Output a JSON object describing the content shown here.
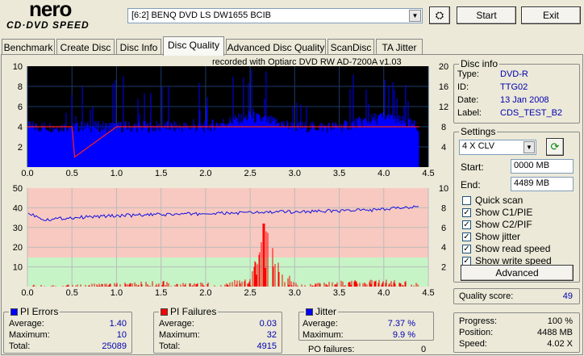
{
  "app": {
    "logo_line1": "nero",
    "logo_line2": "CD·DVD SPEED"
  },
  "toolbar": {
    "drive": "[6:2]  BENQ DVD LS DW1655 BCIB",
    "start_label": "Start",
    "exit_label": "Exit"
  },
  "tabs": [
    "Benchmark",
    "Create Disc",
    "Disc Info",
    "Disc Quality",
    "Advanced Disc Quality",
    "ScanDisc",
    "TA Jitter"
  ],
  "active_tab": "Disc Quality",
  "chart_top": {
    "caption": "recorded with Optiarc  DVD RW AD-7200A   v1.03",
    "yticks_left": [
      "10",
      "8",
      "6",
      "4",
      "2"
    ],
    "yticks_right": [
      "20",
      "16",
      "12",
      "8",
      "4"
    ],
    "xticks": [
      "0.0",
      "0.5",
      "1.0",
      "1.5",
      "2.0",
      "2.5",
      "3.0",
      "3.5",
      "4.0",
      "4.5"
    ]
  },
  "chart_bottom": {
    "yticks_left": [
      "50",
      "40",
      "30",
      "20",
      "10"
    ],
    "yticks_right": [
      "10",
      "8",
      "6",
      "4",
      "2"
    ],
    "xticks": [
      "0.0",
      "0.5",
      "1.0",
      "1.5",
      "2.0",
      "2.5",
      "3.0",
      "3.5",
      "4.0",
      "4.5"
    ]
  },
  "chart_data": [
    {
      "type": "bar",
      "title": "",
      "series": [
        {
          "name": "PI Errors",
          "color": "#0000ff",
          "x": [
            0.0,
            0.5,
            1.0,
            1.5,
            2.0,
            2.5,
            3.0,
            3.5,
            4.0,
            4.4
          ],
          "values": [
            4,
            4,
            4,
            4,
            4,
            5,
            4,
            4,
            5,
            4
          ]
        },
        {
          "name": "Read speed",
          "color": "#ff0000",
          "x": [
            0.0,
            0.5,
            0.53,
            1.0,
            2.0,
            3.0,
            4.0,
            4.4
          ],
          "values": [
            4,
            4,
            1,
            4,
            4,
            4,
            4,
            4
          ]
        }
      ],
      "xlim": [
        0,
        4.5
      ],
      "ylim": [
        0,
        10
      ],
      "y2lim": [
        0,
        20
      ]
    },
    {
      "type": "line",
      "title": "",
      "series": [
        {
          "name": "PI Failures",
          "color": "#ff0000",
          "x": [
            0.0,
            0.5,
            1.0,
            1.5,
            2.0,
            2.5,
            2.65,
            3.0,
            3.5,
            4.0,
            4.4
          ],
          "values": [
            2,
            1,
            2,
            3,
            2,
            4,
            32,
            2,
            3,
            4,
            2
          ]
        },
        {
          "name": "Jitter",
          "color": "#0000ff",
          "x": [
            0.0,
            0.2,
            0.5,
            1.0,
            1.5,
            2.0,
            2.5,
            3.0,
            3.5,
            4.0,
            4.4
          ],
          "values": [
            7.5,
            6.8,
            7.0,
            7.2,
            7.3,
            7.4,
            7.5,
            7.6,
            7.7,
            7.8,
            8.2
          ]
        }
      ],
      "xlim": [
        0,
        4.5
      ],
      "ylim": [
        0,
        50
      ],
      "y2lim": [
        0,
        10
      ]
    }
  ],
  "disc_info": {
    "title": "Disc info",
    "rows": [
      {
        "label": "Type:",
        "value": "DVD-R"
      },
      {
        "label": "ID:",
        "value": "TTG02"
      },
      {
        "label": "Date:",
        "value": "13 Jan 2008"
      },
      {
        "label": "Label:",
        "value": "CDS_TEST_B2"
      }
    ]
  },
  "settings": {
    "title": "Settings",
    "speed": "4 X CLV",
    "start_label": "Start:",
    "start_value": "0000 MB",
    "end_label": "End:",
    "end_value": "4489 MB",
    "checks": [
      {
        "label": "Quick scan",
        "checked": false
      },
      {
        "label": "Show C1/PIE",
        "checked": true
      },
      {
        "label": "Show C2/PIF",
        "checked": true
      },
      {
        "label": "Show jitter",
        "checked": true
      },
      {
        "label": "Show read speed",
        "checked": true
      },
      {
        "label": "Show write speed",
        "checked": true
      }
    ],
    "advanced_label": "Advanced"
  },
  "quality": {
    "label": "Quality score:",
    "value": "49"
  },
  "pi_errors": {
    "title": "PI Errors",
    "color": "#0000ff",
    "average_label": "Average:",
    "average": "1.40",
    "maximum_label": "Maximum:",
    "maximum": "10",
    "total_label": "Total:",
    "total": "25089"
  },
  "pi_failures": {
    "title": "PI Failures",
    "color": "#ff0000",
    "average_label": "Average:",
    "average": "0.03",
    "maximum_label": "Maximum:",
    "maximum": "32",
    "total_label": "Total:",
    "total": "4915"
  },
  "jitter": {
    "title": "Jitter",
    "color": "#0000ff",
    "average_label": "Average:",
    "average": "7.37 %",
    "maximum_label": "Maximum:",
    "maximum": "9.9 %",
    "po_label": "PO failures:",
    "po": "0"
  },
  "progress": {
    "progress_label": "Progress:",
    "progress": "100 %",
    "position_label": "Position:",
    "position": "4488 MB",
    "speed_label": "Speed:",
    "speed": "4.02 X"
  }
}
